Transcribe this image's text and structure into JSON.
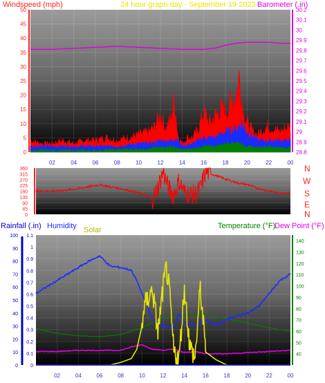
{
  "header": {
    "left_title": "Windspeed (mph)",
    "center_title": "24 hour graph day - September 19 2023",
    "right_title": "Barometer (.in)"
  },
  "bottom_header": {
    "rainfall": "Rainfall (.in)",
    "humidity": "Humidity",
    "solar": "Solar",
    "temperature": "Temperature (°F)",
    "dew_point": "Dew Point (°F)"
  },
  "compass": [
    "N",
    "W",
    "S",
    "E",
    "N"
  ],
  "colors": {
    "windspeed": "#ff3333",
    "barometer": "#e000e0",
    "gust": "#ff0000",
    "avg": "#1a2bff",
    "low": "#008000",
    "humidity": "#1a2bff",
    "solar": "#e6e600",
    "temperature": "#008000",
    "dewpoint": "#e000e0",
    "rainfall": "#0000cc",
    "direction": "#ff0000"
  },
  "chart_data": [
    {
      "type": "line",
      "title": "24 hour graph day - September 19 2023",
      "ylabel": "Windspeed (mph)",
      "y2label": "Barometer (.in)",
      "x_ticks": [
        "02",
        "04",
        "06",
        "08",
        "10",
        "12",
        "14",
        "16",
        "18",
        "20",
        "22",
        "00"
      ],
      "ylim": [
        0,
        50
      ],
      "y_ticks": [
        0,
        5,
        10,
        15,
        20,
        25,
        30,
        35,
        40,
        45,
        50
      ],
      "y2lim": [
        28.8,
        30.2
      ],
      "y2_ticks": [
        "28.8",
        "28.9",
        "29",
        "29.1",
        "29.2",
        "29.3",
        "29.4",
        "29.5",
        "29.6",
        "29.7",
        "29.8",
        "29.9",
        "30",
        "30.1",
        "30.2"
      ],
      "series": [
        {
          "name": "Barometer (.in)",
          "axis": "right",
          "x": [
            0,
            2,
            4,
            6,
            8,
            10,
            12,
            14,
            16,
            17,
            18,
            19,
            20,
            21,
            22,
            23,
            24
          ],
          "values": [
            29.81,
            29.81,
            29.82,
            29.83,
            29.84,
            29.83,
            29.82,
            29.81,
            29.81,
            29.82,
            29.85,
            29.87,
            29.88,
            29.88,
            29.88,
            29.87,
            29.87
          ]
        },
        {
          "name": "gust",
          "axis": "left",
          "x": [
            0,
            1,
            2,
            3,
            4,
            5,
            6,
            7,
            8,
            9,
            10,
            11,
            11.5,
            12,
            12.5,
            13,
            13.3,
            13.6,
            14,
            14.5,
            15,
            15.5,
            16,
            16.5,
            17,
            17.5,
            18,
            18.5,
            19,
            19.3,
            19.6,
            20,
            20.5,
            21,
            21.5,
            22,
            22.5,
            23,
            23.5,
            24
          ],
          "values": [
            4,
            3,
            3,
            4,
            3,
            4,
            4,
            5,
            4,
            5,
            6,
            7,
            9,
            13,
            8,
            12,
            19,
            6,
            3,
            5,
            5,
            8,
            14,
            10,
            12,
            15,
            14,
            17,
            20,
            27,
            15,
            10,
            7,
            6,
            8,
            9,
            8,
            7,
            8,
            9
          ]
        },
        {
          "name": "average",
          "axis": "left",
          "x": [
            0,
            2,
            4,
            6,
            8,
            10,
            11,
            12,
            13,
            13.5,
            14,
            15,
            16,
            17,
            18,
            19,
            19.5,
            20,
            21,
            22,
            23,
            24
          ],
          "values": [
            2,
            2,
            2,
            2,
            2,
            3,
            3,
            4,
            4,
            5,
            2,
            3,
            5,
            5,
            7,
            8,
            10,
            7,
            4,
            4,
            4,
            4
          ]
        },
        {
          "name": "low",
          "axis": "left",
          "x": [
            0,
            2,
            4,
            6,
            8,
            10,
            12,
            13,
            14,
            15,
            16,
            17,
            18,
            19,
            20,
            21,
            22,
            23,
            24
          ],
          "values": [
            0.5,
            0.5,
            0.5,
            0.5,
            0.8,
            1,
            1.5,
            2,
            0.8,
            1,
            2,
            2,
            3,
            3.5,
            2,
            1.5,
            2,
            1.5,
            1.5
          ]
        }
      ]
    },
    {
      "type": "line",
      "ylabel": "Wind direction",
      "ylim": [
        0,
        360
      ],
      "y_ticks": [
        0,
        45,
        90,
        135,
        180,
        225,
        270,
        315,
        360
      ],
      "x": [
        0,
        2,
        4,
        5,
        6,
        7,
        8,
        9,
        10,
        11,
        11.5,
        12,
        12.5,
        13,
        13.5,
        14,
        15,
        15.5,
        16,
        17,
        18,
        19,
        20,
        21,
        22,
        23,
        24
      ],
      "values": [
        180,
        180,
        200,
        215,
        230,
        215,
        200,
        180,
        160,
        120,
        210,
        330,
        200,
        150,
        260,
        170,
        150,
        200,
        330,
        300,
        270,
        245,
        230,
        200,
        180,
        165,
        165
      ]
    },
    {
      "type": "line",
      "x_ticks": [
        "02",
        "04",
        "06",
        "08",
        "10",
        "12",
        "14",
        "16",
        "18",
        "20",
        "22",
        "00"
      ],
      "ylim_humidity": [
        0,
        100
      ],
      "humidity_ticks": [
        0,
        10,
        20,
        30,
        40,
        50,
        60,
        70,
        80,
        90,
        100
      ],
      "ylim_rain": [
        0,
        1.1
      ],
      "rain_ticks": [
        "0",
        "0.1",
        "0.2",
        "0.3",
        "0.4",
        "0.5",
        "0.6",
        "0.7",
        "0.8",
        "0.9",
        "1",
        "1.1"
      ],
      "ylim_temp": [
        30,
        145
      ],
      "temp_ticks": [
        40,
        50,
        60,
        70,
        80,
        90,
        100,
        110,
        120,
        130,
        140
      ],
      "series": [
        {
          "name": "Humidity",
          "axis": "humidity",
          "x": [
            0,
            1,
            2,
            3,
            4,
            5,
            6,
            6.5,
            7,
            8,
            9,
            9.5,
            10,
            10.5,
            11,
            12,
            13,
            13.5,
            14,
            15,
            16,
            17,
            18,
            19,
            20,
            21,
            22,
            23,
            24
          ],
          "values": [
            55,
            60,
            65,
            70,
            75,
            80,
            84,
            80,
            76,
            75,
            73,
            65,
            55,
            45,
            35,
            30,
            28,
            40,
            32,
            30,
            35,
            30,
            35,
            38,
            40,
            45,
            55,
            65,
            70
          ]
        },
        {
          "name": "Solar",
          "axis": "humidity",
          "x": [
            0,
            7,
            8,
            9,
            9.5,
            10,
            10.2,
            10.5,
            11,
            11.5,
            12,
            12.3,
            12.6,
            13,
            13.5,
            14,
            14.5,
            15,
            15.5,
            16,
            17,
            18,
            18.5,
            19,
            20,
            24
          ],
          "values": [
            0,
            0,
            2,
            5,
            12,
            30,
            45,
            50,
            58,
            25,
            60,
            75,
            55,
            10,
            5,
            60,
            15,
            5,
            60,
            10,
            4,
            0,
            0,
            0,
            0,
            0
          ]
        },
        {
          "name": "Temperature (°F)",
          "axis": "temp",
          "x": [
            0,
            2,
            4,
            6,
            8,
            10,
            12,
            14,
            16,
            18,
            20,
            22,
            24
          ],
          "values": [
            62,
            58,
            56,
            55,
            57,
            63,
            72,
            74,
            74,
            71,
            67,
            63,
            60
          ]
        },
        {
          "name": "Dew Point (°F)",
          "axis": "temp",
          "x": [
            0,
            2,
            4,
            6,
            8,
            9,
            10,
            11,
            12,
            13,
            14,
            15,
            16,
            18,
            20,
            22,
            24
          ],
          "values": [
            42,
            42,
            43,
            43,
            43,
            46,
            48,
            44,
            43,
            44,
            41,
            42,
            40,
            40,
            41,
            42,
            43
          ]
        },
        {
          "name": "Rainfall (.in)",
          "axis": "rain",
          "x": [
            0,
            24
          ],
          "values": [
            0,
            0
          ]
        }
      ]
    }
  ]
}
